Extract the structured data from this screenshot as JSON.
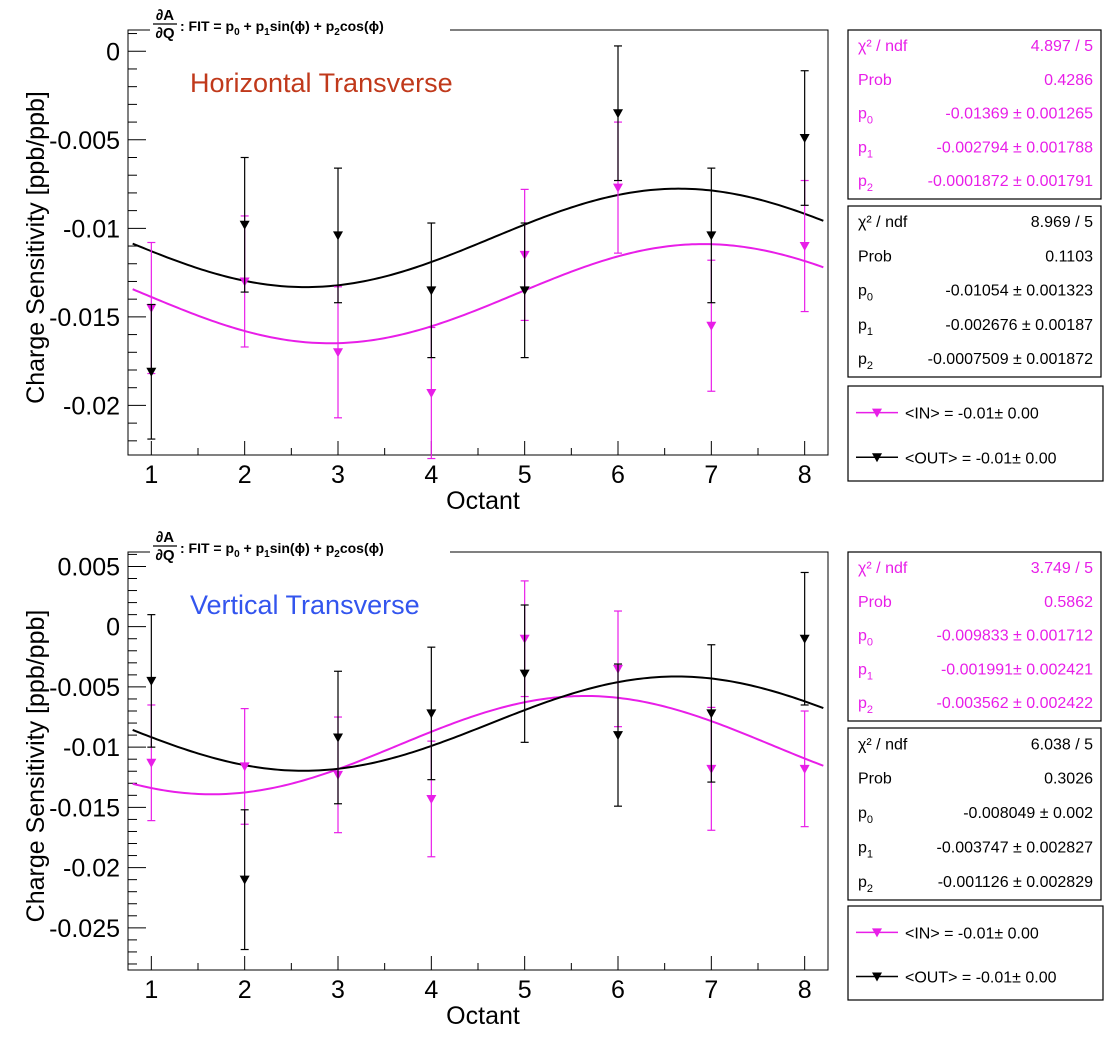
{
  "chart_data": [
    {
      "type": "scatter",
      "title_lines": [
        "∂A",
        "∂Q",
        ": FIT = p",
        "0",
        " + p",
        "1",
        "sin(ϕ) + p",
        "2",
        "cos(ϕ)"
      ],
      "annotation": "Horizontal Transverse",
      "annotation_color": "#c0391b",
      "xlabel": "Octant",
      "ylabel": "Charge Sensitivity [ppb/ppb]",
      "xlim": [
        0.75,
        8.25
      ],
      "ylim": [
        -0.0228,
        0.0012
      ],
      "xticks": [
        1,
        2,
        3,
        4,
        5,
        6,
        7,
        8
      ],
      "yticks": [
        0,
        -0.005,
        -0.01,
        -0.015,
        -0.02
      ],
      "ytick_labels": [
        "0",
        "-0.005",
        "-0.01",
        "-0.015",
        "-0.02"
      ],
      "series": [
        {
          "name": "IN",
          "color": "#e81ee8",
          "x": [
            1,
            2,
            3,
            4,
            5,
            6,
            7,
            8
          ],
          "y": [
            -0.0145,
            -0.013,
            -0.017,
            -0.0193,
            -0.0115,
            -0.0077,
            -0.0155,
            -0.011
          ],
          "err": [
            0.0037,
            0.0037,
            0.0037,
            0.0037,
            0.0037,
            0.0037,
            0.0037,
            0.0037
          ],
          "fit": {
            "p0": -0.01369,
            "p1": -0.002794,
            "p2": -0.0001872
          }
        },
        {
          "name": "OUT",
          "color": "#000000",
          "x": [
            1,
            2,
            3,
            4,
            5,
            6,
            7,
            8
          ],
          "y": [
            -0.0181,
            -0.0098,
            -0.0104,
            -0.0135,
            -0.0135,
            -0.0035,
            -0.0104,
            -0.0049
          ],
          "err": [
            0.0038,
            0.0038,
            0.0038,
            0.0038,
            0.0038,
            0.0038,
            0.0038,
            0.0038
          ],
          "fit": {
            "p0": -0.01054,
            "p1": -0.002676,
            "p2": -0.0007509
          }
        }
      ],
      "stats": [
        {
          "color": "#e81ee8",
          "rows": [
            {
              "label": "χ² / ndf",
              "value": "4.897 / 5"
            },
            {
              "label": "Prob",
              "value": "0.4286"
            },
            {
              "label": "p0",
              "value": "-0.01369 ± 0.001265"
            },
            {
              "label": "p1",
              "value": "-0.002794 ± 0.001788"
            },
            {
              "label": "p2",
              "value": "-0.0001872 ± 0.001791"
            }
          ]
        },
        {
          "color": "#000000",
          "rows": [
            {
              "label": "χ² / ndf",
              "value": "8.969 / 5"
            },
            {
              "label": "Prob",
              "value": "0.1103"
            },
            {
              "label": "p0",
              "value": "-0.01054 ± 0.001323"
            },
            {
              "label": "p1",
              "value": "-0.002676 ± 0.00187"
            },
            {
              "label": "p2",
              "value": "-0.0007509 ± 0.001872"
            }
          ]
        }
      ],
      "legend": [
        {
          "text": "<IN> = -0.01± 0.00",
          "color": "#e81ee8"
        },
        {
          "text": "<OUT> = -0.01± 0.00",
          "color": "#000000"
        }
      ]
    },
    {
      "type": "scatter",
      "title_lines": [
        "∂A",
        "∂Q",
        ": FIT = p",
        "0",
        " + p",
        "1",
        "sin(ϕ) + p",
        "2",
        "cos(ϕ)"
      ],
      "annotation": "Vertical Transverse",
      "annotation_color": "#3355ee",
      "xlabel": "Octant",
      "ylabel": "Charge Sensitivity [ppb/ppb]",
      "xlim": [
        0.75,
        8.25
      ],
      "ylim": [
        -0.0285,
        0.0062
      ],
      "xticks": [
        1,
        2,
        3,
        4,
        5,
        6,
        7,
        8
      ],
      "yticks": [
        0.005,
        0,
        -0.005,
        -0.01,
        -0.015,
        -0.02,
        -0.025
      ],
      "ytick_labels": [
        "0.005",
        "0",
        "-0.005",
        "-0.01",
        "-0.015",
        "-0.02",
        "-0.025"
      ],
      "series": [
        {
          "name": "IN",
          "color": "#e81ee8",
          "x": [
            1,
            2,
            3,
            4,
            5,
            6,
            7,
            8
          ],
          "y": [
            -0.0113,
            -0.0116,
            -0.0123,
            -0.0143,
            -0.001,
            -0.0035,
            -0.0118,
            -0.0118
          ],
          "err": [
            0.0048,
            0.0048,
            0.0048,
            0.0048,
            0.0048,
            0.0048,
            0.0051,
            0.0048
          ],
          "fit": {
            "p0": -0.009833,
            "p1": -0.001991,
            "p2": -0.003562
          }
        },
        {
          "name": "OUT",
          "color": "#000000",
          "x": [
            1,
            2,
            3,
            4,
            5,
            6,
            7,
            8
          ],
          "y": [
            -0.0045,
            -0.021,
            -0.0092,
            -0.0072,
            -0.0039,
            -0.009,
            -0.0072,
            -0.001
          ],
          "err": [
            0.0055,
            0.0058,
            0.0055,
            0.0055,
            0.0057,
            0.0059,
            0.0057,
            0.0055
          ],
          "fit": {
            "p0": -0.008049,
            "p1": -0.003747,
            "p2": -0.001126
          }
        }
      ],
      "stats": [
        {
          "color": "#e81ee8",
          "rows": [
            {
              "label": "χ² / ndf",
              "value": "3.749 / 5"
            },
            {
              "label": "Prob",
              "value": "0.5862"
            },
            {
              "label": "p0",
              "value": "-0.009833 ± 0.001712"
            },
            {
              "label": "p1",
              "value": "-0.001991± 0.002421"
            },
            {
              "label": "p2",
              "value": "-0.003562 ± 0.002422"
            }
          ]
        },
        {
          "color": "#000000",
          "rows": [
            {
              "label": "χ² / ndf",
              "value": "6.038 / 5"
            },
            {
              "label": "Prob",
              "value": "0.3026"
            },
            {
              "label": "p0",
              "value": "-0.008049 ± 0.002"
            },
            {
              "label": "p1",
              "value": "-0.003747 ± 0.002827"
            },
            {
              "label": "p2",
              "value": "-0.001126 ± 0.002829"
            }
          ]
        }
      ],
      "legend": [
        {
          "text": "<IN> = -0.01± 0.00",
          "color": "#e81ee8"
        },
        {
          "text": "<OUT> = -0.01± 0.00",
          "color": "#000000"
        }
      ]
    }
  ]
}
